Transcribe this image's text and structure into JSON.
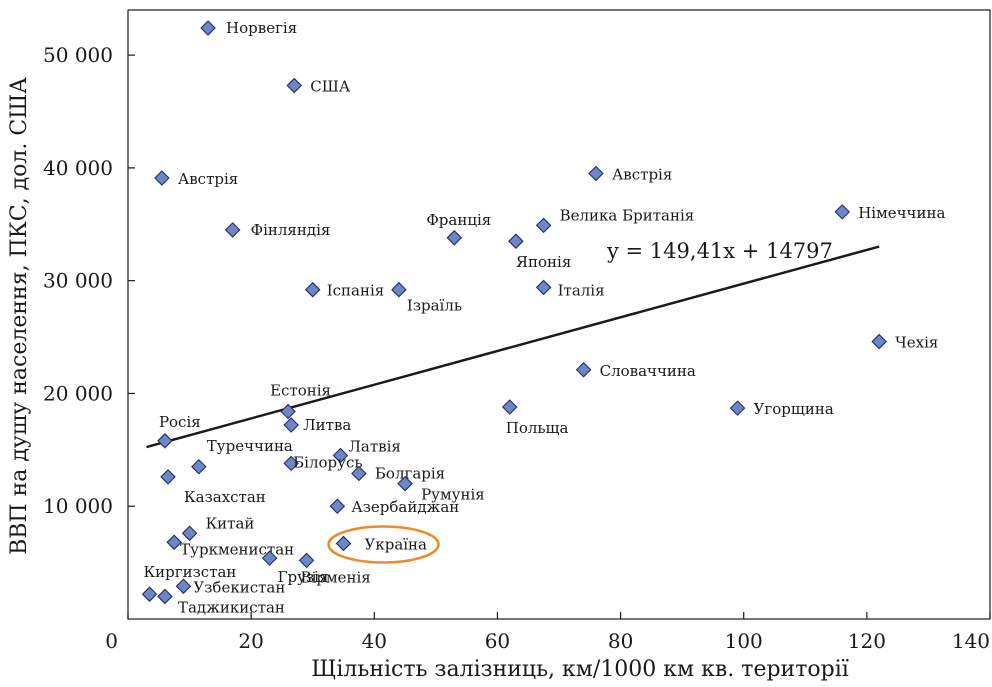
{
  "chart_data": {
    "type": "scatter",
    "title": "",
    "xlabel": "Щільність залізниць, км/1000 км кв. території",
    "ylabel": "ВВП на душу населення, ПКС, дол. США",
    "xlim": [
      0,
      140
    ],
    "ylim": [
      0,
      54000
    ],
    "x_ticks": [
      0,
      20,
      40,
      60,
      80,
      100,
      120,
      140
    ],
    "x_tick_labels": [
      "0",
      "20",
      "40",
      "60",
      "80",
      "100",
      "120",
      "140"
    ],
    "y_ticks": [
      10000,
      20000,
      30000,
      40000,
      50000
    ],
    "y_tick_labels": [
      "10 000",
      "20 000",
      "30 000",
      "40 000",
      "50 000"
    ],
    "grid": false,
    "marker": "diamond",
    "marker_color": "#6f86c6",
    "marker_edge_color": "#1f2f6b",
    "points": [
      {
        "label": "Норвегія",
        "x": 13,
        "y": 52400
      },
      {
        "label": "США",
        "x": 27,
        "y": 47300
      },
      {
        "label": "Австрія",
        "x": 5.5,
        "y": 39100
      },
      {
        "label": "Австрія",
        "x": 76,
        "y": 39500
      },
      {
        "label": "Фінляндія",
        "x": 17,
        "y": 34500
      },
      {
        "label": "Франція",
        "x": 53,
        "y": 33800
      },
      {
        "label": "Велика Британія",
        "x": 67.5,
        "y": 34900
      },
      {
        "label": "Японія",
        "x": 63,
        "y": 33500
      },
      {
        "label": "Німеччина",
        "x": 116,
        "y": 36100
      },
      {
        "label": "Іспанія",
        "x": 30,
        "y": 29200
      },
      {
        "label": "Ізраїль",
        "x": 44,
        "y": 29200
      },
      {
        "label": "Італія",
        "x": 67.5,
        "y": 29400
      },
      {
        "label": "Чехія",
        "x": 122,
        "y": 24600
      },
      {
        "label": "Словаччина",
        "x": 74,
        "y": 22100
      },
      {
        "label": "Естонія",
        "x": 26,
        "y": 18400
      },
      {
        "label": "Польща",
        "x": 62,
        "y": 18800
      },
      {
        "label": "Угорщина",
        "x": 99,
        "y": 18700
      },
      {
        "label": "Литва",
        "x": 26.5,
        "y": 17200
      },
      {
        "label": "Росія",
        "x": 6,
        "y": 15800
      },
      {
        "label": "Латвія",
        "x": 34.5,
        "y": 14500
      },
      {
        "label": "Туреччина",
        "x": 11.5,
        "y": 13500
      },
      {
        "label": "Білорусь",
        "x": 26.5,
        "y": 13800
      },
      {
        "label": "Болгарія",
        "x": 37.5,
        "y": 12900
      },
      {
        "label": "Казахстан",
        "x": 6.5,
        "y": 12600
      },
      {
        "label": "Румунія",
        "x": 45,
        "y": 12000
      },
      {
        "label": "Азербайджан",
        "x": 34,
        "y": 10000
      },
      {
        "label": "Китай",
        "x": 10,
        "y": 7600
      },
      {
        "label": "Туркменистан",
        "x": 7.5,
        "y": 6800
      },
      {
        "label": "Україна",
        "x": 35,
        "y": 6700
      },
      {
        "label": "Грузія",
        "x": 23,
        "y": 5400
      },
      {
        "label": "Вірменія",
        "x": 29,
        "y": 5200
      },
      {
        "label": "Киргизстан",
        "x": 3.5,
        "y": 2200
      },
      {
        "label": "Узбекистан",
        "x": 9,
        "y": 2900
      },
      {
        "label": "Таджикистан",
        "x": 6,
        "y": 2000
      }
    ],
    "trendline": {
      "equation_text": "y = 149,41x + 14797",
      "slope": 149.41,
      "intercept": 14797,
      "x_start": 3,
      "x_end": 122,
      "color": "#1a1a1a"
    },
    "highlight": {
      "label": "Україна",
      "color": "#ef8a2b"
    }
  }
}
